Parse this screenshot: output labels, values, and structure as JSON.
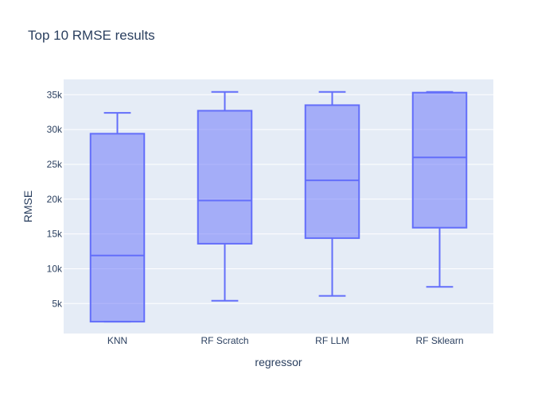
{
  "chart_data": {
    "type": "box",
    "title": "Top 10 RMSE results",
    "xlabel": "regressor",
    "ylabel": "RMSE",
    "categories": [
      "KNN",
      "RF Scratch",
      "RF LLM",
      "RF Sklearn"
    ],
    "boxes": [
      {
        "category": "KNN",
        "min": 2400,
        "q1": 2400,
        "median": 11900,
        "q3": 29400,
        "max": 32400
      },
      {
        "category": "RF Scratch",
        "min": 5400,
        "q1": 13600,
        "median": 19800,
        "q3": 32700,
        "max": 35400
      },
      {
        "category": "RF LLM",
        "min": 6100,
        "q1": 14400,
        "median": 22700,
        "q3": 33500,
        "max": 35400
      },
      {
        "category": "RF Sklearn",
        "min": 7400,
        "q1": 15900,
        "median": 26000,
        "q3": 35300,
        "max": 35400
      }
    ],
    "yticks": [
      5000,
      10000,
      15000,
      20000,
      25000,
      30000,
      35000
    ],
    "ytick_labels": [
      "5k",
      "10k",
      "15k",
      "20k",
      "25k",
      "30k",
      "35k"
    ],
    "ylim": [
      700,
      37200
    ],
    "grid": true,
    "legend": "none",
    "colors": {
      "box_fill": "rgba(99,110,250,0.5)",
      "box_line": "#636efa",
      "plot_bg": "#e5ecf6",
      "grid": "#ffffff",
      "text": "#2a3f5f"
    }
  }
}
